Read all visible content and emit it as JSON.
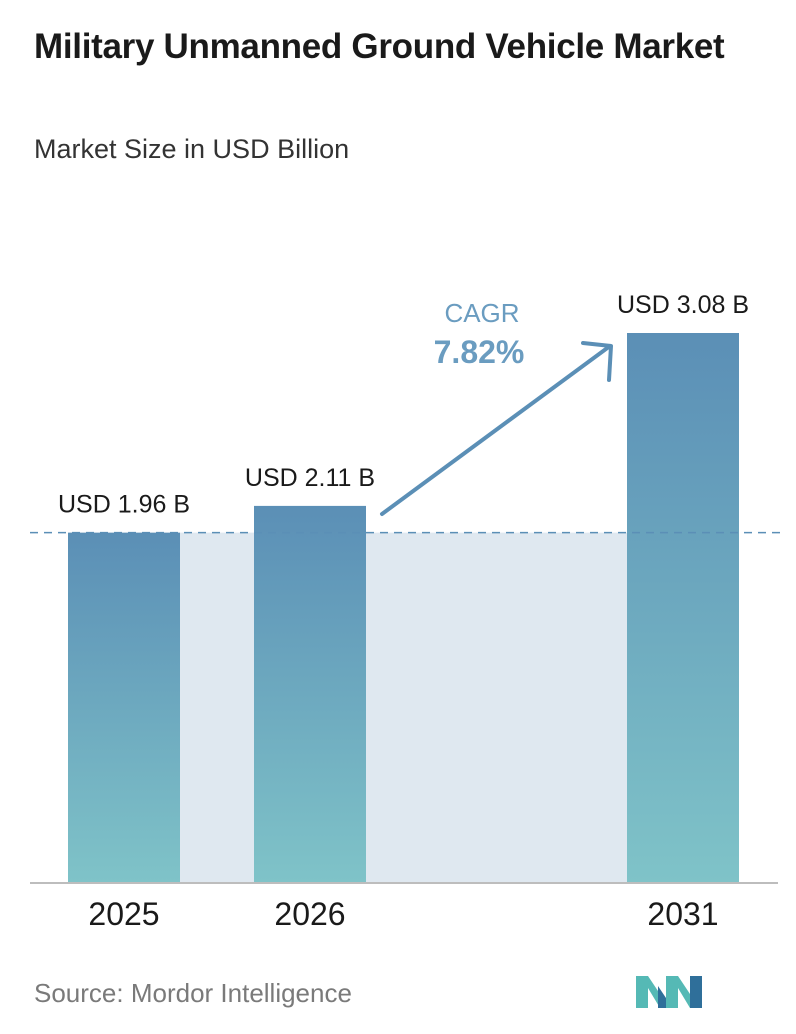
{
  "title": "Military Unmanned Ground Vehicle Market",
  "subtitle": "Market Size in USD Billion",
  "source": "Source:  Mordor Intelligence",
  "cagr": {
    "label": "CAGR",
    "value": "7.82%"
  },
  "colors": {
    "bar_top": "#5b8fb6",
    "bar_bottom": "#7fc3c8",
    "band": "#dfe8f0",
    "arrow": "#5b8fb6",
    "cagr_text": "#6a9cc0",
    "axis": "#bdbdbd",
    "logo_teal": "#55b9b5",
    "logo_blue": "#2f6f9a"
  },
  "chart_data": {
    "type": "bar",
    "categories": [
      "2025",
      "2026",
      "2031"
    ],
    "values": [
      1.96,
      2.11,
      3.08
    ],
    "value_labels": [
      "USD 1.96 B",
      "USD 2.11 B",
      "USD 3.08 B"
    ],
    "title": "Military Unmanned Ground Vehicle Market",
    "subtitle": "Market Size in USD Billion",
    "xlabel": "",
    "ylabel": "",
    "reference_line": 1.96,
    "grid": false,
    "legend": "none"
  }
}
